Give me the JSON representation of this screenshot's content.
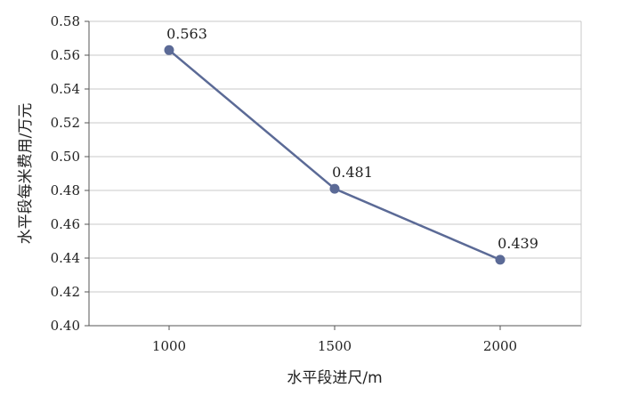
{
  "chart_data": {
    "type": "line",
    "title": "",
    "xlabel": "水平段进尺/m",
    "ylabel": "水平段每米费用/万元",
    "categories": [
      "1000",
      "1500",
      "2000"
    ],
    "series": [
      {
        "values": [
          0.563,
          0.481,
          0.439
        ],
        "data_labels": [
          "0.563",
          "0.481",
          "0.439"
        ]
      }
    ],
    "ylim": [
      0.4,
      0.58
    ],
    "y_ticks": [
      "0.40",
      "0.42",
      "0.44",
      "0.46",
      "0.48",
      "0.50",
      "0.52",
      "0.54",
      "0.56",
      "0.58"
    ],
    "grid": "horizontal",
    "colors": {
      "series": "#5b6a96",
      "grid": "#c8c8c8",
      "axis": "#555555"
    }
  }
}
